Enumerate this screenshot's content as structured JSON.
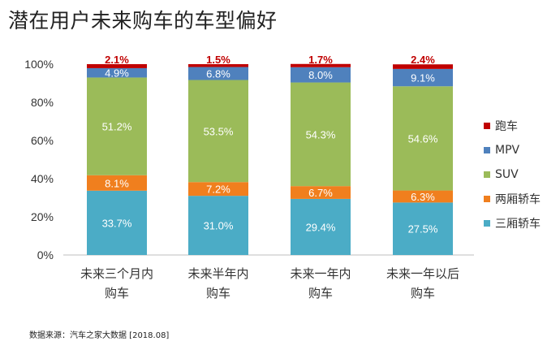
{
  "title": "潜在用户未来购车的车型偏好",
  "source": "数据来源：汽车之家大数据 [2018.08]",
  "chart_data": {
    "type": "bar",
    "stacked": true,
    "categories": [
      [
        "未来三个月内",
        "购车"
      ],
      [
        "未来半年内",
        "购车"
      ],
      [
        "未来一年内",
        "购车"
      ],
      [
        "未来一年以后",
        "购车"
      ]
    ],
    "y_ticks": [
      "0%",
      "20%",
      "40%",
      "60%",
      "80%",
      "100%"
    ],
    "ylim": [
      0,
      100
    ],
    "legend_position": "right",
    "series": [
      {
        "name": "三厢轿车",
        "color": "#4BACC6",
        "values": [
          33.7,
          31.0,
          29.4,
          27.5
        ],
        "labels": [
          "33.7%",
          "31.0%",
          "29.4%",
          "27.5%"
        ]
      },
      {
        "name": "两厢轿车",
        "color": "#F07F1E",
        "values": [
          8.1,
          7.2,
          6.7,
          6.3
        ],
        "labels": [
          "8.1%",
          "7.2%",
          "6.7%",
          "6.3%"
        ]
      },
      {
        "name": "SUV",
        "color": "#9BBB59",
        "values": [
          51.2,
          53.5,
          54.3,
          54.6
        ],
        "labels": [
          "51.2%",
          "53.5%",
          "54.3%",
          "54.6%"
        ]
      },
      {
        "name": "MPV",
        "color": "#4F81BD",
        "values": [
          4.9,
          6.8,
          8.0,
          9.1
        ],
        "labels": [
          "4.9%",
          "6.8%",
          "8.0%",
          "9.1%"
        ]
      },
      {
        "name": "跑车",
        "color": "#C00000",
        "values": [
          2.1,
          1.5,
          1.7,
          2.4
        ],
        "labels": [
          "2.1%",
          "1.5%",
          "1.7%",
          "2.4%"
        ]
      }
    ]
  }
}
